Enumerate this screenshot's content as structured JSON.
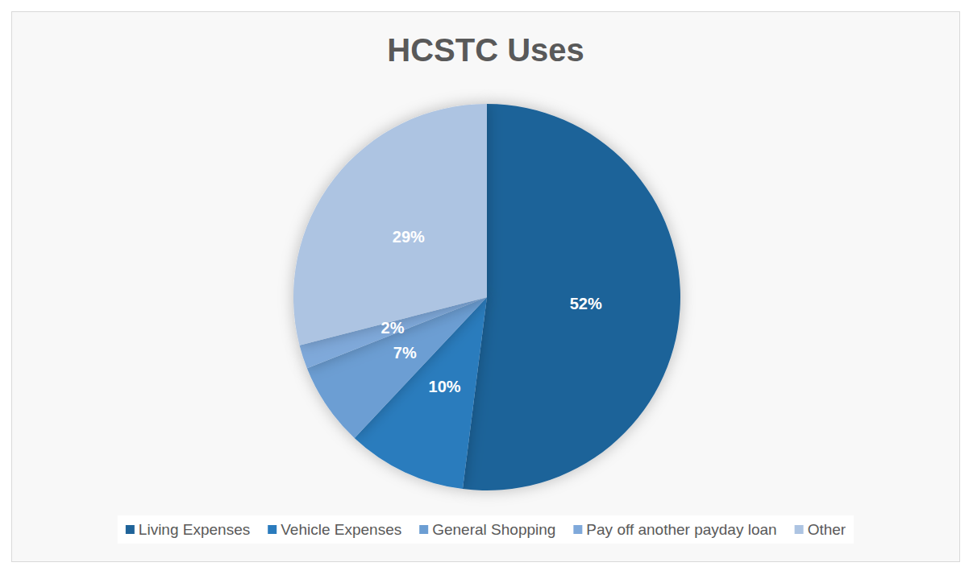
{
  "chart_data": {
    "type": "pie",
    "title": "HCSTC Uses",
    "categories": [
      "Living Expenses",
      "Vehicle Expenses",
      "General Shopping",
      "Pay off another payday loan",
      "Other"
    ],
    "values": [
      52,
      10,
      7,
      2,
      29
    ],
    "value_labels": [
      "52%",
      "10%",
      "7%",
      "2%",
      "29%"
    ],
    "colors": [
      "#1f6399",
      "#2a7bbd",
      "#6c9ed3",
      "#7fa9da",
      "#adc4e2"
    ],
    "legend": "bottom",
    "data_labels": true
  }
}
